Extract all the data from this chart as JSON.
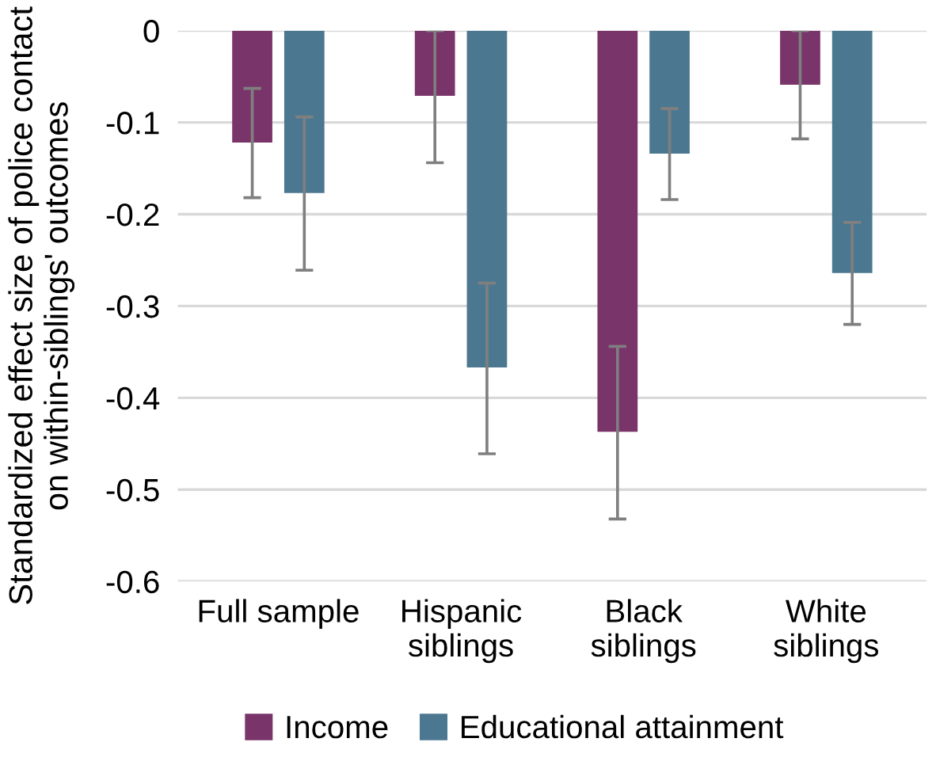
{
  "chart_data": {
    "type": "bar",
    "ylabel": "Standardized effect size of police contact\non within-siblings' outcomes",
    "categories": [
      "Full sample",
      "Hispanic\nsiblings",
      "Black\nsiblings",
      "White\nsiblings"
    ],
    "series": [
      {
        "name": "Income",
        "color": "#79356a",
        "values": [
          -0.122,
          -0.071,
          -0.437,
          -0.059
        ],
        "errors": [
          [
            -0.182,
            -0.063
          ],
          [
            -0.144,
            0.0
          ],
          [
            -0.532,
            -0.344
          ],
          [
            -0.118,
            0.0
          ]
        ]
      },
      {
        "name": "Educational attainment",
        "color": "#4b7890",
        "values": [
          -0.177,
          -0.367,
          -0.134,
          -0.264
        ],
        "errors": [
          [
            -0.261,
            -0.094
          ],
          [
            -0.461,
            -0.275
          ],
          [
            -0.184,
            -0.085
          ],
          [
            -0.32,
            -0.209
          ]
        ]
      }
    ],
    "ylim": [
      -0.6,
      0
    ],
    "yticks": [
      {
        "value": -0.6,
        "label": "-0.6"
      },
      {
        "value": -0.5,
        "label": "-0.5"
      },
      {
        "value": -0.4,
        "label": "-0.4"
      },
      {
        "value": -0.3,
        "label": "-0.3"
      },
      {
        "value": -0.2,
        "label": "-0.2"
      },
      {
        "value": -0.1,
        "label": "-0.1"
      },
      0
    ],
    "grid": "y",
    "legend": "bottom"
  }
}
